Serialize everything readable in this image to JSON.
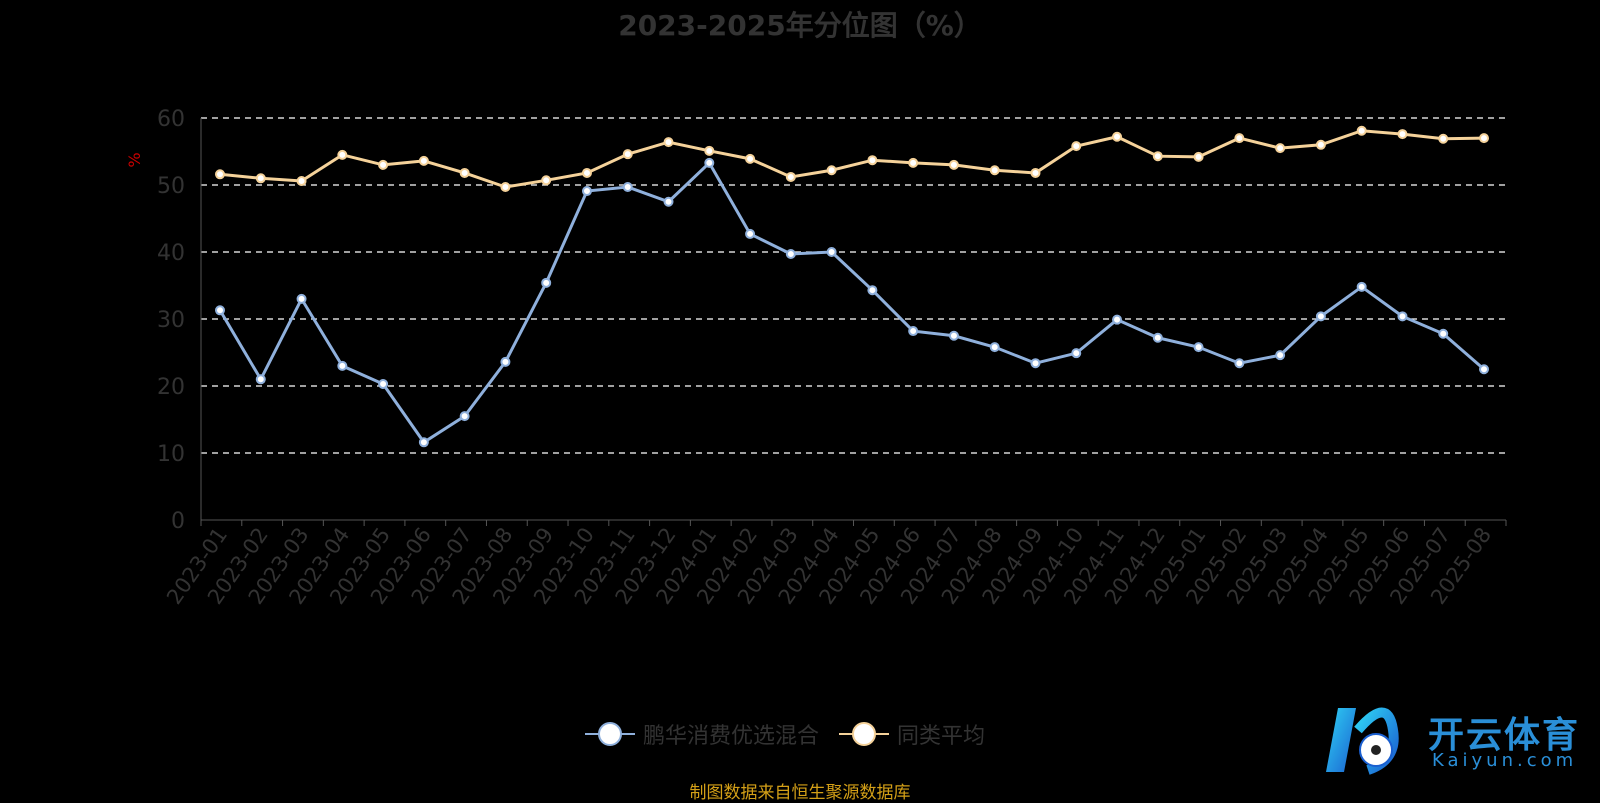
{
  "chart_data": {
    "type": "line",
    "title": "2023-2025年分位图（%）",
    "xlabel": "",
    "ylabel": "%",
    "ylim": [
      0,
      60
    ],
    "yticks": [
      0,
      10,
      20,
      30,
      40,
      50,
      60
    ],
    "grid": true,
    "legend_position": "bottom",
    "categories": [
      "2023-01",
      "2023-02",
      "2023-03",
      "2023-04",
      "2023-05",
      "2023-06",
      "2023-07",
      "2023-08",
      "2023-09",
      "2023-10",
      "2023-11",
      "2023-12",
      "2024-01",
      "2024-02",
      "2024-03",
      "2024-04",
      "2024-05",
      "2024-06",
      "2024-07",
      "2024-08",
      "2024-09",
      "2024-10",
      "2024-11",
      "2024-12",
      "2025-01",
      "2025-02",
      "2025-03",
      "2025-04",
      "2025-05",
      "2025-06",
      "2025-07",
      "2025-08"
    ],
    "series": [
      {
        "name": "鹏华消费优选混合",
        "color": "#8fb0dc",
        "values": [
          31.3,
          21.0,
          33.0,
          23.0,
          20.3,
          11.6,
          15.5,
          23.6,
          35.4,
          49.1,
          49.7,
          47.5,
          53.3,
          42.7,
          39.7,
          40.0,
          34.3,
          28.2,
          27.5,
          25.8,
          23.4,
          24.9,
          29.9,
          27.2,
          25.8,
          23.4,
          24.6,
          30.4,
          34.8,
          30.4,
          27.8,
          22.5
        ]
      },
      {
        "name": "同类平均",
        "color": "#f5d29a",
        "values": [
          51.6,
          51.0,
          50.6,
          54.5,
          53.0,
          53.6,
          51.8,
          49.7,
          50.7,
          51.8,
          54.6,
          56.4,
          55.1,
          53.9,
          51.2,
          52.2,
          53.7,
          53.3,
          53.0,
          52.2,
          51.8,
          55.8,
          57.2,
          54.3,
          54.2,
          57.0,
          55.5,
          56.0,
          58.1,
          57.6,
          56.9,
          57.0
        ]
      }
    ]
  },
  "source": "制图数据来自恒生聚源数据库",
  "watermark": {
    "name": "开云体育",
    "domain": "Kaiyun.com"
  }
}
